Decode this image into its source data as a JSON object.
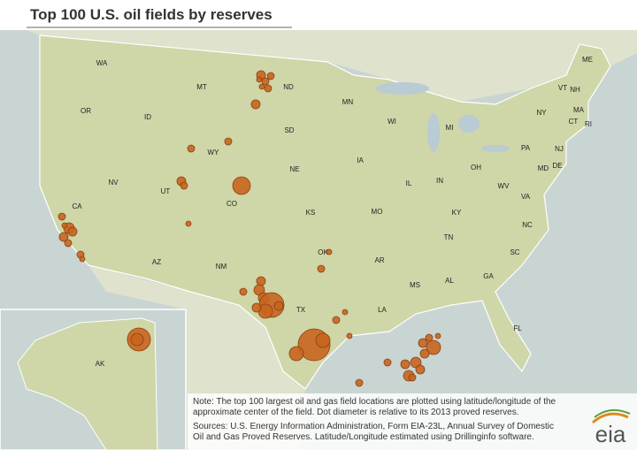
{
  "title": "Top 100 U.S. oil fields by reserves",
  "states": [
    "WA",
    "OR",
    "ID",
    "MT",
    "ND",
    "MN",
    "WI",
    "MI",
    "SD",
    "WY",
    "NE",
    "IA",
    "IL",
    "IN",
    "OH",
    "PA",
    "NY",
    "VT",
    "NH",
    "ME",
    "MA",
    "CT",
    "RI",
    "NJ",
    "MD",
    "DE",
    "WV",
    "VA",
    "NV",
    "UT",
    "CO",
    "KS",
    "MO",
    "KY",
    "NC",
    "TN",
    "CA",
    "AZ",
    "NM",
    "OK",
    "AR",
    "SC",
    "GA",
    "AL",
    "MS",
    "TX",
    "LA",
    "FL",
    "AK"
  ],
  "note": [
    "Note: The top 100 largest oil and gas field locations are plotted using latitude/longitude of the",
    "approximate center of the field.  Dot diameter is relative to its 2013 proved reserves."
  ],
  "sources": [
    "Sources: U.S. Energy Information Administration, Form EIA-23L, Annual Survey of Domestic",
    "Oil and Gas Proved Reserves. Latitude/Longitude estimated using Drillinginfo software."
  ],
  "logo": "eia"
}
